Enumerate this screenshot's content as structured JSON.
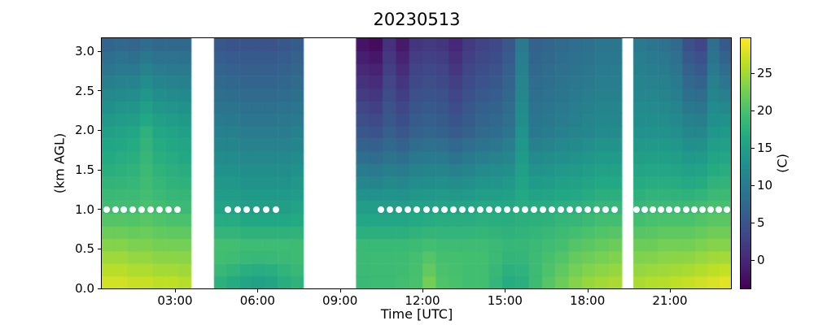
{
  "title": "20230513",
  "colors": {
    "background": "#ffffff",
    "axis": "#000000",
    "dot_marker": "#ffffff"
  },
  "chart_data": {
    "type": "heatmap",
    "title": "20230513",
    "xlabel": "Time [UTC]",
    "ylabel": "(km AGL)",
    "colorbar_label": "(C)",
    "colormap": "viridis",
    "vmin": -3.8,
    "vmax": 29.7,
    "x_range_hours": [
      0.336,
      23.25
    ],
    "y_range_km": [
      0.0,
      3.165
    ],
    "x_ticks": [
      {
        "hour": 3,
        "label": "03:00"
      },
      {
        "hour": 6,
        "label": "06:00"
      },
      {
        "hour": 9,
        "label": "09:00"
      },
      {
        "hour": 12,
        "label": "12:00"
      },
      {
        "hour": 15,
        "label": "15:00"
      },
      {
        "hour": 18,
        "label": "18:00"
      },
      {
        "hour": 21,
        "label": "21:00"
      }
    ],
    "y_ticks": [
      {
        "km": 0.0,
        "label": "0.0"
      },
      {
        "km": 0.5,
        "label": "0.5"
      },
      {
        "km": 1.0,
        "label": "1.0"
      },
      {
        "km": 1.5,
        "label": "1.5"
      },
      {
        "km": 2.0,
        "label": "2.0"
      },
      {
        "km": 2.5,
        "label": "2.5"
      },
      {
        "km": 3.0,
        "label": "3.0"
      }
    ],
    "colorbar_ticks": [
      {
        "value": 0,
        "label": "0"
      },
      {
        "value": 5,
        "label": "5"
      },
      {
        "value": 10,
        "label": "10"
      },
      {
        "value": 15,
        "label": "15"
      },
      {
        "value": 20,
        "label": "20"
      },
      {
        "value": 25,
        "label": "25"
      }
    ],
    "gaps_hours": [
      [
        3.583,
        4.417
      ],
      [
        7.667,
        9.583
      ],
      [
        19.25,
        19.667
      ]
    ],
    "height_anchors_km": [
      0.0,
      0.5,
      1.0,
      2.0,
      3.165
    ],
    "data_blocks": [
      {
        "start_hour": 0.336,
        "end_hour": 3.583,
        "columns": [
          {
            "time": "00:20",
            "temps_c": [
              28.0,
              24.0,
              19.5,
              15.0,
              6.5
            ]
          },
          {
            "time": "00:48",
            "temps_c": [
              28.0,
              24.0,
              19.5,
              15.5,
              7.0
            ]
          },
          {
            "time": "01:16",
            "temps_c": [
              27.5,
              23.5,
              19.5,
              16.0,
              6.5
            ]
          },
          {
            "time": "01:44",
            "temps_c": [
              27.5,
              23.5,
              20.0,
              17.5,
              7.5
            ]
          },
          {
            "time": "02:12",
            "temps_c": [
              27.0,
              23.0,
              19.5,
              16.0,
              7.0
            ]
          },
          {
            "time": "02:40",
            "temps_c": [
              27.0,
              23.0,
              19.0,
              15.5,
              7.0
            ]
          },
          {
            "time": "03:08",
            "temps_c": [
              26.5,
              23.0,
              19.0,
              15.0,
              7.0
            ]
          }
        ]
      },
      {
        "start_hour": 4.417,
        "end_hour": 7.667,
        "columns": [
          {
            "time": "04:25",
            "temps_c": [
              17.0,
              20.0,
              15.5,
              10.5,
              5.0
            ]
          },
          {
            "time": "04:53",
            "temps_c": [
              16.0,
              20.0,
              15.5,
              10.5,
              4.5
            ]
          },
          {
            "time": "05:21",
            "temps_c": [
              15.0,
              19.5,
              15.0,
              10.0,
              4.5
            ]
          },
          {
            "time": "05:49",
            "temps_c": [
              14.5,
              19.5,
              15.0,
              10.0,
              4.5
            ]
          },
          {
            "time": "06:17",
            "temps_c": [
              15.0,
              19.5,
              15.0,
              10.0,
              4.5
            ]
          },
          {
            "time": "06:45",
            "temps_c": [
              16.5,
              19.5,
              15.0,
              10.0,
              5.0
            ]
          },
          {
            "time": "07:13",
            "temps_c": [
              17.5,
              19.5,
              15.5,
              10.5,
              5.5
            ]
          }
        ]
      },
      {
        "start_hour": 9.583,
        "end_hour": 19.25,
        "columns": [
          {
            "time": "09:35",
            "temps_c": [
              18.5,
              19.0,
              15.0,
              5.0,
              -2.5
            ]
          },
          {
            "time": "10:04",
            "temps_c": [
              19.0,
              19.0,
              15.0,
              4.5,
              -3.3
            ]
          },
          {
            "time": "10:33",
            "temps_c": [
              19.0,
              19.0,
              15.0,
              6.0,
              0.5
            ]
          },
          {
            "time": "11:02",
            "temps_c": [
              19.5,
              19.0,
              15.0,
              5.0,
              -2.0
            ]
          },
          {
            "time": "11:31",
            "temps_c": [
              20.0,
              19.5,
              15.5,
              6.5,
              1.0
            ]
          },
          {
            "time": "12:00",
            "temps_c": [
              23.0,
              20.0,
              15.5,
              7.0,
              1.5
            ]
          },
          {
            "time": "12:29",
            "temps_c": [
              20.5,
              19.5,
              16.0,
              6.5,
              1.0
            ]
          },
          {
            "time": "12:58",
            "temps_c": [
              20.0,
              19.5,
              16.0,
              5.5,
              -0.5
            ]
          },
          {
            "time": "13:27",
            "temps_c": [
              19.5,
              19.5,
              16.0,
              6.5,
              1.5
            ]
          },
          {
            "time": "13:56",
            "temps_c": [
              19.5,
              19.5,
              16.5,
              7.5,
              2.5
            ]
          },
          {
            "time": "14:25",
            "temps_c": [
              18.0,
              19.0,
              16.5,
              8.0,
              3.0
            ]
          },
          {
            "time": "14:54",
            "temps_c": [
              16.5,
              18.5,
              16.5,
              9.0,
              5.0
            ]
          },
          {
            "time": "15:23",
            "temps_c": [
              17.0,
              18.5,
              17.0,
              13.0,
              9.5
            ]
          },
          {
            "time": "15:52",
            "temps_c": [
              19.0,
              19.0,
              17.0,
              9.5,
              6.5
            ]
          },
          {
            "time": "16:21",
            "temps_c": [
              21.0,
              19.5,
              17.0,
              10.0,
              7.0
            ]
          },
          {
            "time": "16:50",
            "temps_c": [
              22.5,
              20.0,
              17.5,
              10.5,
              7.5
            ]
          },
          {
            "time": "17:19",
            "temps_c": [
              24.0,
              21.0,
              17.5,
              11.0,
              8.0
            ]
          },
          {
            "time": "17:48",
            "temps_c": [
              25.0,
              21.5,
              18.0,
              11.5,
              8.5
            ]
          },
          {
            "time": "18:17",
            "temps_c": [
              25.5,
              22.0,
              18.5,
              12.0,
              9.0
            ]
          },
          {
            "time": "18:46",
            "temps_c": [
              26.0,
              22.5,
              18.5,
              12.0,
              9.0
            ]
          }
        ]
      },
      {
        "start_hour": 19.667,
        "end_hour": 23.25,
        "columns": [
          {
            "time": "19:40",
            "temps_c": [
              26.0,
              22.5,
              18.5,
              13.0,
              9.5
            ]
          },
          {
            "time": "20:07",
            "temps_c": [
              26.5,
              22.5,
              19.0,
              13.0,
              9.0
            ]
          },
          {
            "time": "20:34",
            "temps_c": [
              26.5,
              23.0,
              19.0,
              13.0,
              8.5
            ]
          },
          {
            "time": "21:01",
            "temps_c": [
              27.0,
              23.0,
              19.0,
              12.5,
              7.5
            ]
          },
          {
            "time": "21:28",
            "temps_c": [
              27.5,
              23.0,
              19.0,
              11.5,
              4.0
            ]
          },
          {
            "time": "21:55",
            "temps_c": [
              28.0,
              23.5,
              19.5,
              11.5,
              2.5
            ]
          },
          {
            "time": "22:22",
            "temps_c": [
              28.5,
              24.0,
              20.0,
              13.5,
              8.0
            ]
          },
          {
            "time": "22:49",
            "temps_c": [
              29.0,
              24.0,
              20.0,
              14.0,
              5.0
            ]
          }
        ]
      }
    ],
    "dot_markers": {
      "height_km": 1.0,
      "color": "#ffffff",
      "segments": [
        {
          "start_hour": 0.5,
          "end_hour": 3.1,
          "count": 9
        },
        {
          "start_hour": 4.92,
          "end_hour": 6.67,
          "count": 6
        },
        {
          "start_hour": 10.5,
          "end_hour": 19.0,
          "count": 27
        },
        {
          "start_hour": 19.78,
          "end_hour": 23.08,
          "count": 12
        }
      ]
    }
  }
}
